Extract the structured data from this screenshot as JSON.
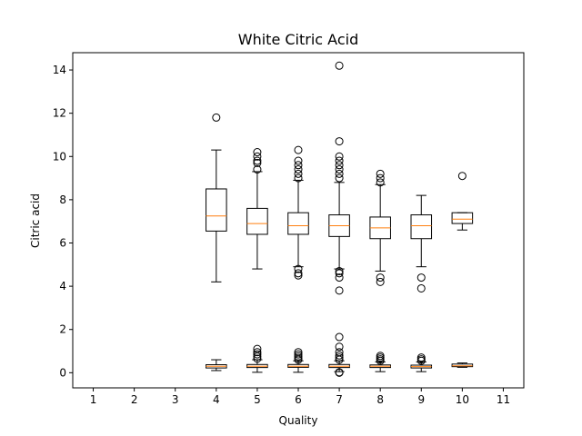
{
  "chart_data": {
    "type": "box",
    "title": "White Citric Acid",
    "xlabel": "Quality",
    "ylabel": "Citric acid",
    "xlim": [
      0.5,
      11.5
    ],
    "ylim": [
      -0.7,
      14.8
    ],
    "xticks": [
      1,
      2,
      3,
      4,
      5,
      6,
      7,
      8,
      9,
      10,
      11
    ],
    "yticks": [
      0,
      2,
      4,
      6,
      8,
      10,
      12,
      14
    ],
    "grid": false,
    "colors": {
      "box": "#000000",
      "median": "#ff7f0e",
      "background": "#ffffff"
    },
    "groups": [
      {
        "name": "upper",
        "boxes": [
          {
            "x": 4,
            "whislo": 4.2,
            "q1": 6.55,
            "med": 7.25,
            "q3": 8.5,
            "whishi": 10.3,
            "fliers": [
              11.8
            ]
          },
          {
            "x": 5,
            "whislo": 4.8,
            "q1": 6.4,
            "med": 6.9,
            "q3": 7.6,
            "whishi": 9.3,
            "fliers": [
              9.4,
              9.7,
              9.8,
              10.0,
              10.2
            ]
          },
          {
            "x": 6,
            "whislo": 4.9,
            "q1": 6.4,
            "med": 6.8,
            "q3": 7.4,
            "whishi": 8.9,
            "fliers": [
              4.5,
              4.6,
              4.8,
              9.0,
              9.2,
              9.4,
              9.6,
              9.8,
              10.3
            ]
          },
          {
            "x": 7,
            "whislo": 4.8,
            "q1": 6.3,
            "med": 6.8,
            "q3": 7.3,
            "whishi": 8.8,
            "fliers": [
              3.8,
              4.4,
              4.6,
              4.7,
              9.0,
              9.2,
              9.4,
              9.6,
              9.8,
              10.0,
              10.7,
              14.2
            ]
          },
          {
            "x": 8,
            "whislo": 4.7,
            "q1": 6.2,
            "med": 6.7,
            "q3": 7.2,
            "whishi": 8.7,
            "fliers": [
              4.2,
              4.4,
              8.8,
              9.0,
              9.2
            ]
          },
          {
            "x": 9,
            "whislo": 4.9,
            "q1": 6.2,
            "med": 6.8,
            "q3": 7.3,
            "whishi": 8.2,
            "fliers": [
              3.9,
              4.4
            ]
          },
          {
            "x": 10,
            "whislo": 6.6,
            "q1": 6.9,
            "med": 7.1,
            "q3": 7.4,
            "whishi": 7.4,
            "fliers": [
              9.1
            ]
          }
        ]
      },
      {
        "name": "lower",
        "boxes": [
          {
            "x": 4,
            "whislo": 0.1,
            "q1": 0.22,
            "med": 0.3,
            "q3": 0.37,
            "whishi": 0.6,
            "fliers": []
          },
          {
            "x": 5,
            "whislo": 0.02,
            "q1": 0.24,
            "med": 0.3,
            "q3": 0.38,
            "whishi": 0.6,
            "fliers": [
              0.65,
              0.75,
              0.85,
              0.95,
              1.1
            ]
          },
          {
            "x": 6,
            "whislo": 0.02,
            "q1": 0.25,
            "med": 0.3,
            "q3": 0.38,
            "whishi": 0.55,
            "fliers": [
              0.6,
              0.68,
              0.76,
              0.85,
              0.95
            ]
          },
          {
            "x": 7,
            "whislo": 0.05,
            "q1": 0.24,
            "med": 0.3,
            "q3": 0.38,
            "whishi": 0.55,
            "fliers": [
              0.0,
              0.02,
              0.6,
              0.7,
              0.8,
              0.95,
              1.2,
              1.65
            ]
          },
          {
            "x": 8,
            "whislo": 0.05,
            "q1": 0.24,
            "med": 0.3,
            "q3": 0.36,
            "whishi": 0.5,
            "fliers": [
              0.55,
              0.62,
              0.7,
              0.78
            ]
          },
          {
            "x": 9,
            "whislo": 0.05,
            "q1": 0.22,
            "med": 0.28,
            "q3": 0.35,
            "whishi": 0.5,
            "fliers": [
              0.55,
              0.62,
              0.7
            ]
          },
          {
            "x": 10,
            "whislo": 0.25,
            "q1": 0.28,
            "med": 0.32,
            "q3": 0.4,
            "whishi": 0.45,
            "fliers": []
          }
        ]
      }
    ]
  }
}
